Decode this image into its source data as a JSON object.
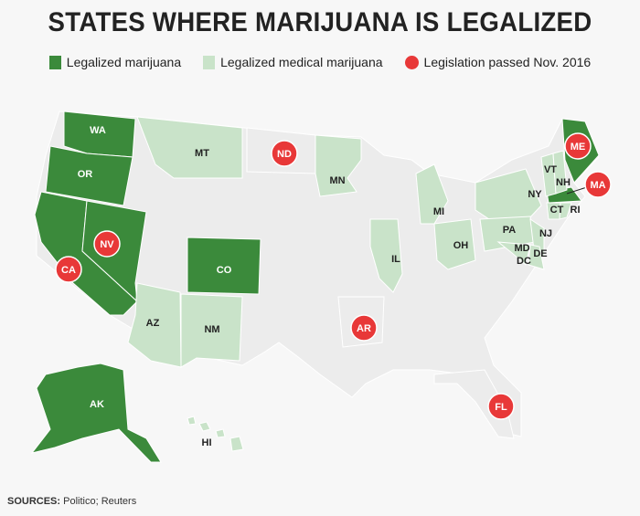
{
  "title": "STATES WHERE MARIJUANA IS LEGALIZED",
  "legend": [
    {
      "label": "Legalized marijuana",
      "color": "#3b8a3b",
      "shape": "square"
    },
    {
      "label": "Legalized medical marijuana",
      "color": "#c9e3c9",
      "shape": "square"
    },
    {
      "label": "Legislation passed Nov. 2016",
      "color": "#e83838",
      "shape": "circle"
    }
  ],
  "colors": {
    "recreational": "#3b8a3b",
    "medical": "#c9e3c9",
    "none": "#ececec",
    "marker": "#e83838"
  },
  "states": [
    {
      "abbr": "WA",
      "status": "recreational"
    },
    {
      "abbr": "OR",
      "status": "recreational"
    },
    {
      "abbr": "CA",
      "status": "recreational",
      "nov2016": true
    },
    {
      "abbr": "NV",
      "status": "recreational",
      "nov2016": true
    },
    {
      "abbr": "CO",
      "status": "recreational"
    },
    {
      "abbr": "AK",
      "status": "recreational"
    },
    {
      "abbr": "ME",
      "status": "recreational",
      "nov2016": true
    },
    {
      "abbr": "MA",
      "status": "recreational",
      "nov2016": true
    },
    {
      "abbr": "MT",
      "status": "medical"
    },
    {
      "abbr": "ND",
      "status": "none",
      "nov2016": true
    },
    {
      "abbr": "MN",
      "status": "medical"
    },
    {
      "abbr": "MI",
      "status": "medical"
    },
    {
      "abbr": "IL",
      "status": "medical"
    },
    {
      "abbr": "OH",
      "status": "medical"
    },
    {
      "abbr": "AZ",
      "status": "medical"
    },
    {
      "abbr": "NM",
      "status": "medical"
    },
    {
      "abbr": "AR",
      "status": "none",
      "nov2016": true
    },
    {
      "abbr": "FL",
      "status": "none",
      "nov2016": true
    },
    {
      "abbr": "NY",
      "status": "medical"
    },
    {
      "abbr": "VT",
      "status": "medical"
    },
    {
      "abbr": "NH",
      "status": "medical"
    },
    {
      "abbr": "CT",
      "status": "medical"
    },
    {
      "abbr": "RI",
      "status": "medical"
    },
    {
      "abbr": "PA",
      "status": "medical"
    },
    {
      "abbr": "NJ",
      "status": "medical"
    },
    {
      "abbr": "MD",
      "status": "medical"
    },
    {
      "abbr": "DC",
      "status": "medical"
    },
    {
      "abbr": "DE",
      "status": "medical"
    },
    {
      "abbr": "HI",
      "status": "medical"
    }
  ],
  "source": {
    "label": "SOURCES:",
    "text": " Politico; Reuters"
  }
}
